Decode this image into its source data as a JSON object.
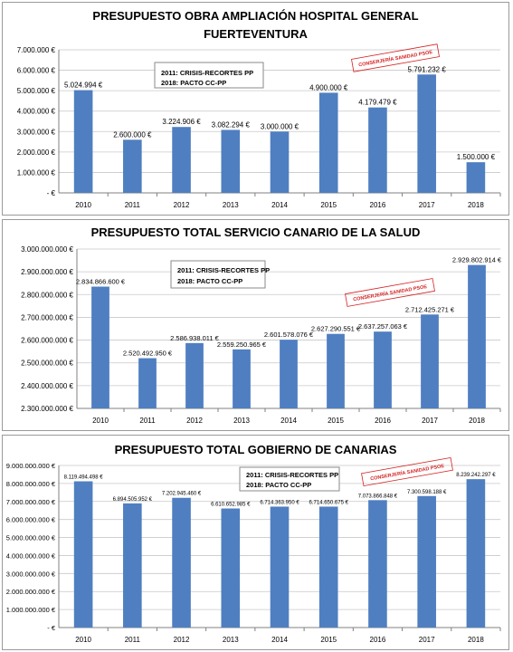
{
  "colors": {
    "bar": "#4f7fc1",
    "grid": "#c8c8c8",
    "axis": "#808080",
    "stamp": "#d42020"
  },
  "chart_data": [
    {
      "type": "bar",
      "title_lines": [
        "PRESUPUESTO OBRA AMPLIACIÓN HOSPITAL GENERAL",
        "FUERTEVENTURA"
      ],
      "categories": [
        "2010",
        "2011",
        "2012",
        "2013",
        "2014",
        "2015",
        "2016",
        "2017",
        "2018"
      ],
      "values": [
        5024994,
        2600000,
        3224906,
        3082294,
        3000000,
        4900000,
        4179479,
        5791232,
        1500000
      ],
      "data_labels": [
        "5.024.994 €",
        "2.600.000 €",
        "3.224.906 €",
        "3.082.294 €",
        "3.000.000 €",
        "4.900.000 €",
        "4.179.479 €",
        "5.791.232 €",
        "1.500.000 €"
      ],
      "ylim": [
        0,
        7000000
      ],
      "yticks": [
        "-  €",
        "1.000.000 €",
        "2.000.000 €",
        "3.000.000 €",
        "4.000.000 €",
        "5.000.000 €",
        "6.000.000 €",
        "7.000.000 €"
      ],
      "note_lines": [
        "2011: CRISIS-RECORTES PP",
        "2018: PACTO CC-PP"
      ],
      "stamp": "CONSERJERÍA SANIDAD PSOE",
      "grid": true,
      "legend": "none"
    },
    {
      "type": "bar",
      "title_lines": [
        "PRESUPUESTO TOTAL SERVICIO CANARIO DE LA SALUD"
      ],
      "categories": [
        "2010",
        "2011",
        "2012",
        "2013",
        "2014",
        "2015",
        "2016",
        "2017",
        "2018"
      ],
      "values": [
        2834866600,
        2520492950,
        2586938011,
        2559250965,
        2601578076,
        2627290551,
        2637257063,
        2712425271,
        2929802914
      ],
      "data_labels": [
        "2.834.866.600 €",
        "2.520.492.950 €",
        "2.586.938.011 €",
        "2.559.250.965 €",
        "2.601.578.076 €",
        "2.627.290.551 €",
        "2.637.257.063 €",
        "2.712.425.271 €",
        "2.929.802.914 €"
      ],
      "ylim": [
        2300000000,
        3000000000
      ],
      "yticks": [
        "2.300.000.000 €",
        "2.400.000.000 €",
        "2.500.000.000 €",
        "2.600.000.000 €",
        "2.700.000.000 €",
        "2.800.000.000 €",
        "2.900.000.000 €",
        "3.000.000.000 €"
      ],
      "note_lines": [
        "2011: CRISIS-RECORTES PP",
        "2018: PACTO CC-PP"
      ],
      "stamp": "CONSERJERÍA SANIDAD PSOE",
      "grid": true,
      "legend": "none"
    },
    {
      "type": "bar",
      "title_lines": [
        "PRESUPUESTO TOTAL GOBIERNO DE CANARIAS"
      ],
      "categories": [
        "2010",
        "2011",
        "2012",
        "2013",
        "2014",
        "2015",
        "2016",
        "2017",
        "2018"
      ],
      "values": [
        8119494498,
        6894505952,
        7202945460,
        6610652985,
        6714363950,
        6714650675,
        7073866848,
        7300598188,
        8239242297
      ],
      "data_labels": [
        "8.119.494.498 €",
        "6.894.505.952 €",
        "7.202.945.460 €",
        "6.610.652.985 €",
        "6.714.363.950 €",
        "6.714.650.675 €",
        "7.073.866.848 €",
        "7.300.598.188 €",
        "8.239.242.297 €"
      ],
      "ylim": [
        0,
        9000000000
      ],
      "yticks": [
        "-  €",
        "1.000.000.000 €",
        "2.000.000.000 €",
        "3.000.000.000 €",
        "4.000.000.000 €",
        "5.000.000.000 €",
        "6.000.000.000 €",
        "7.000.000.000 €",
        "8.000.000.000 €",
        "9.000.000.000 €"
      ],
      "note_lines": [
        "2011: CRISIS-RECORTES PP",
        "2018: PACTO CC-PP"
      ],
      "stamp": "CONSERJERÍA SANIDAD PSOE",
      "grid": true,
      "legend": "none"
    }
  ]
}
